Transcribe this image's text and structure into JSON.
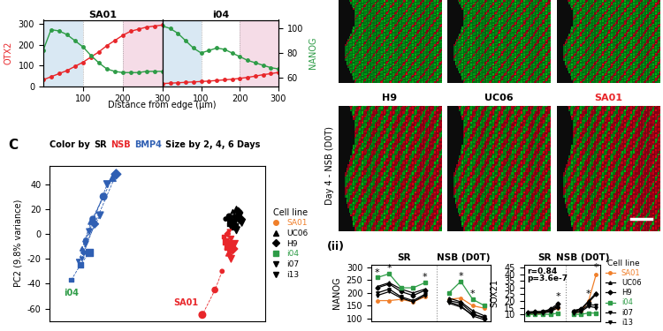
{
  "chart_data": [
    {
      "type": "line",
      "title": "SA01",
      "x_label": "Distance from edge (µm)",
      "y_label": "OTX2",
      "x": [
        0,
        20,
        40,
        60,
        80,
        100,
        120,
        140,
        160,
        180,
        200,
        220,
        240,
        260,
        280,
        300
      ],
      "xlim": [
        0,
        300
      ],
      "xticks": [
        100,
        200,
        300
      ],
      "ylim": [
        0,
        320
      ],
      "yticks": [
        0,
        100,
        200,
        300
      ],
      "y2lim": [
        53,
        107
      ],
      "shaded": [
        {
          "start": 0,
          "end": 100,
          "color": "#d9e8f3"
        },
        {
          "start": 200,
          "end": 300,
          "color": "#f5dce7"
        }
      ],
      "series": [
        {
          "name": "OTX2",
          "color": "#e8262a",
          "marker": "o",
          "values": [
            30,
            45,
            60,
            75,
            95,
            115,
            140,
            165,
            195,
            220,
            245,
            265,
            275,
            285,
            290,
            295
          ]
        },
        {
          "name": "NANOG",
          "color": "#2e9c47",
          "marker": "o",
          "axis": "y2",
          "values": [
            82,
            99,
            98,
            95,
            90,
            85,
            78,
            72,
            67,
            65,
            64,
            64,
            64,
            65,
            65,
            65
          ]
        }
      ]
    },
    {
      "type": "line",
      "title": "i04",
      "y2_label": "NANOG",
      "x": [
        0,
        20,
        40,
        60,
        80,
        100,
        120,
        140,
        160,
        180,
        200,
        220,
        240,
        260,
        280,
        300
      ],
      "xlim": [
        0,
        300
      ],
      "xticks": [
        100,
        200,
        300
      ],
      "ylim": [
        0,
        320
      ],
      "y2lim": [
        53,
        107
      ],
      "y2ticks": [
        60,
        80,
        100
      ],
      "shaded": [
        {
          "start": 0,
          "end": 100,
          "color": "#d9e8f3"
        },
        {
          "start": 200,
          "end": 300,
          "color": "#f5dce7"
        }
      ],
      "series": [
        {
          "name": "OTX2",
          "color": "#e8262a",
          "marker": "o",
          "values": [
            12,
            14,
            16,
            18,
            20,
            22,
            24,
            27,
            30,
            33,
            37,
            42,
            48,
            55,
            60,
            66
          ]
        },
        {
          "name": "NANOG",
          "color": "#2e9c47",
          "marker": "o",
          "axis": "y2",
          "values": [
            102,
            100,
            96,
            90,
            84,
            80,
            82,
            84,
            83,
            80,
            77,
            74,
            72,
            70,
            68,
            67
          ]
        }
      ]
    },
    {
      "type": "scatter",
      "title_parts": [
        {
          "text": "Color by",
          "color": "#000000"
        },
        {
          "text": "SR",
          "color": "#000000"
        },
        {
          "text": "NSB",
          "color": "#e8262a"
        },
        {
          "text": "BMP4",
          "color": "#2f5fb3"
        },
        {
          "text": "Size by 2, 4, 6 Days",
          "color": "#000000"
        }
      ],
      "y_label": "PC2 (9.8% variance)",
      "xlim": [
        -60,
        60
      ],
      "ylim": [
        -70,
        55
      ],
      "yticks": [
        -60,
        -40,
        -20,
        0,
        20,
        40
      ],
      "tick_labels": "y",
      "line_style": "dashed",
      "days": [
        2,
        4,
        6
      ],
      "legend": "right",
      "legend_title": "Cell line",
      "cell_lines": [
        {
          "name": "SA01",
          "marker": "o",
          "color": "#f07f2a"
        },
        {
          "name": "UC06",
          "marker": "^",
          "color": "#000000"
        },
        {
          "name": "H9",
          "marker": "D",
          "color": "#000000"
        },
        {
          "name": "i04",
          "marker": "s",
          "color": "#2e9c47"
        },
        {
          "name": "i07",
          "marker": "v",
          "color": "#000000"
        },
        {
          "name": "i13",
          "marker": "v",
          "color": "#000000"
        }
      ],
      "conditions": [
        {
          "name": "BMP4",
          "color": "#2f5fb3",
          "series": [
            {
              "cell_line": "SA01",
              "x": [
                -40,
                -36,
                -30
              ],
              "y": [
                -5,
                12,
                30
              ]
            },
            {
              "cell_line": "UC06",
              "x": [
                -42,
                -37,
                -25
              ],
              "y": [
                -12,
                10,
                45
              ]
            },
            {
              "cell_line": "H9",
              "x": [
                -41,
                -35,
                -23
              ],
              "y": [
                -15,
                8,
                48
              ]
            },
            {
              "cell_line": "i04",
              "x": [
                -48,
                -43,
                -38
              ],
              "y": [
                -37,
                -25,
                -15
              ]
            },
            {
              "cell_line": "i07",
              "x": [
                -42,
                -38,
                -28
              ],
              "y": [
                -20,
                2,
                40
              ]
            },
            {
              "cell_line": "i13",
              "x": [
                -44,
                -40,
                -32
              ],
              "y": [
                -22,
                -8,
                15
              ]
            }
          ]
        },
        {
          "name": "SR",
          "color": "#000000",
          "series": [
            {
              "cell_line": "SA01",
              "x": [
                38,
                40,
                41
              ],
              "y": [
                12,
                14,
                10
              ]
            },
            {
              "cell_line": "UC06",
              "x": [
                42,
                44,
                45
              ],
              "y": [
                18,
                20,
                16
              ]
            },
            {
              "cell_line": "H9",
              "x": [
                43,
                45,
                46
              ],
              "y": [
                14,
                18,
                12
              ]
            },
            {
              "cell_line": "i04",
              "x": [
                40,
                42,
                43
              ],
              "y": [
                8,
                10,
                6
              ]
            },
            {
              "cell_line": "i07",
              "x": [
                44,
                46,
                47
              ],
              "y": [
                12,
                15,
                9
              ]
            },
            {
              "cell_line": "i13",
              "x": [
                41,
                43,
                44
              ],
              "y": [
                5,
                9,
                3
              ]
            }
          ]
        },
        {
          "name": "NSB",
          "color": "#e8262a",
          "series": [
            {
              "cell_line": "SA01",
              "x": [
                36,
                32,
                25
              ],
              "y": [
                -30,
                -45,
                -65
              ]
            },
            {
              "cell_line": "UC06",
              "x": [
                38,
                39,
                40
              ],
              "y": [
                -5,
                -10,
                -15
              ]
            },
            {
              "cell_line": "H9",
              "x": [
                39,
                40,
                42
              ],
              "y": [
                0,
                -8,
                -12
              ]
            },
            {
              "cell_line": "i04",
              "x": [
                37,
                38,
                39
              ],
              "y": [
                -2,
                -6,
                -10
              ]
            },
            {
              "cell_line": "i07",
              "x": [
                40,
                41,
                43
              ],
              "y": [
                2,
                -4,
                -8
              ]
            },
            {
              "cell_line": "i13",
              "x": [
                38,
                40,
                41
              ],
              "y": [
                -8,
                -14,
                -20
              ]
            }
          ]
        }
      ],
      "annotations": [
        {
          "text": "i04",
          "x": -48,
          "y": -44,
          "color": "#2e9c47"
        },
        {
          "text": "SA01",
          "x": 16,
          "y": -52,
          "color": "#e8262a"
        }
      ]
    },
    {
      "type": "line",
      "y_label": "NANOG",
      "x": [
        0,
        1,
        2,
        3,
        4,
        5,
        6,
        7,
        8,
        9
      ],
      "xlim": [
        -0.5,
        9.5
      ],
      "ylim": [
        90,
        310
      ],
      "yticks": [
        100,
        150,
        200,
        250,
        300
      ],
      "tick_labels": "y",
      "section_labels": [
        "SR",
        "NSB (D0T)"
      ],
      "dividers": [
        5
      ],
      "series": [
        {
          "name": "SA01",
          "color": "#f07f2a",
          "marker": "o",
          "values": [
            170,
            170,
            175,
            165,
            185,
            null,
            175,
            180,
            150,
            140
          ]
        },
        {
          "name": "UC06",
          "color": "#000000",
          "marker": "^",
          "values": [
            225,
            240,
            215,
            200,
            215,
            null,
            180,
            165,
            130,
            110
          ]
        },
        {
          "name": "H9",
          "color": "#000000",
          "marker": "D",
          "values": [
            220,
            235,
            205,
            190,
            210,
            null,
            170,
            160,
            120,
            100
          ]
        },
        {
          "name": "i04",
          "color": "#2e9c47",
          "marker": "s",
          "values": [
            260,
            275,
            220,
            220,
            240,
            null,
            200,
            245,
            175,
            150
          ]
        },
        {
          "name": "i07",
          "color": "#000000",
          "marker": "v",
          "values": [
            200,
            215,
            185,
            170,
            195,
            null,
            165,
            150,
            110,
            95
          ]
        },
        {
          "name": "i13",
          "color": "#000000",
          "marker": "v",
          "values": [
            190,
            205,
            180,
            165,
            190,
            null,
            160,
            145,
            115,
            105
          ]
        }
      ],
      "significance": [
        {
          "text": "*",
          "x": 0,
          "y": 263
        },
        {
          "text": "*",
          "x": 1,
          "y": 279
        },
        {
          "text": "*",
          "x": 4,
          "y": 243
        },
        {
          "text": "*",
          "x": 7,
          "y": 248
        },
        {
          "text": "*",
          "x": 8,
          "y": 178
        }
      ]
    },
    {
      "type": "line",
      "y_label": "SOX21",
      "x": [
        0,
        1,
        2,
        3,
        4,
        5,
        6,
        7,
        8,
        9
      ],
      "xlim": [
        -0.5,
        9.5
      ],
      "ylim": [
        5,
        47
      ],
      "yticks": [
        10,
        15,
        20,
        25,
        30,
        35,
        40,
        45
      ],
      "tick_labels": "y",
      "section_labels": [
        "SR",
        "NSB (D0T)"
      ],
      "dividers": [
        5
      ],
      "annotations": [
        "r=0.84",
        "p=3.6e-7"
      ],
      "legend": "right",
      "legend_title": "Cell line",
      "series": [
        {
          "name": "SA01",
          "color": "#f07f2a",
          "marker": "o",
          "values": [
            10,
            10,
            11,
            13,
            15,
            null,
            11,
            12,
            20,
            40
          ]
        },
        {
          "name": "UC06",
          "color": "#000000",
          "marker": "^",
          "values": [
            12,
            12,
            12,
            13,
            16,
            null,
            13,
            14,
            20,
            26
          ]
        },
        {
          "name": "H9",
          "color": "#000000",
          "marker": "D",
          "values": [
            11,
            12,
            12,
            14,
            18,
            null,
            12,
            14,
            19,
            25
          ]
        },
        {
          "name": "i04",
          "color": "#2e9c47",
          "marker": "s",
          "values": [
            10,
            10,
            10,
            10,
            11,
            null,
            10,
            10,
            11,
            11
          ]
        },
        {
          "name": "i07",
          "color": "#000000",
          "marker": "v",
          "values": [
            11,
            11,
            12,
            13,
            17,
            null,
            12,
            13,
            17,
            17
          ]
        },
        {
          "name": "i13",
          "color": "#000000",
          "marker": "v",
          "values": [
            11,
            11,
            11,
            12,
            15,
            null,
            11,
            12,
            16,
            15
          ]
        }
      ],
      "significance": [
        {
          "text": "*",
          "x": 4,
          "y": 20
        },
        {
          "text": "*",
          "x": 8,
          "y": 22
        },
        {
          "text": "*",
          "x": 9,
          "y": 42
        }
      ]
    }
  ],
  "panel_labels": [
    "C",
    "(ii)"
  ],
  "image_panel": {
    "title": "Day 4 - NSB (D0T)",
    "labels": [
      {
        "text": "H9",
        "color": "#000000"
      },
      {
        "text": "UC06",
        "color": "#000000"
      },
      {
        "text": "SA01",
        "color": "#e8262a"
      }
    ]
  }
}
